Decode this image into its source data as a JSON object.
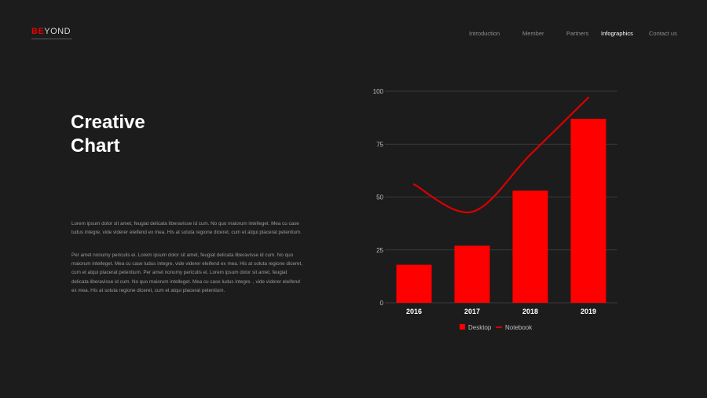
{
  "brand": {
    "logo_red": "BE",
    "logo_white": "YOND"
  },
  "nav": {
    "items": [
      "Introduction",
      "Member",
      "Partners",
      "Infographics",
      "Contact us"
    ],
    "active": "Infographics"
  },
  "title_line1": "Creative",
  "title_line2": "Chart",
  "body": {
    "paragraph1": "Lorem ipsum dolor sit amet, feugiat delicata liberavisse id cum. No quo maiorum intelleget. Mea cu case ludus integre, vide viderer eleifend ex mea. His at soluta regione diceret, cum et atqui placerat petentium.",
    "paragraph2": "Per amet nonumy periculis ei. Lorem ipsum dolor sit amet, feugiat delicata liberavisse id cum. No quo maiorum intelleget. Mea cu case ludus integre, vide viderer eleifend ex mea. His at soluta regione diceret, cum et atqui placerat petentium. Per amet nonumy periculis ei. Lorem ipsum dolor sit amet, feugiat delicata liberavisse id cum. No quo maiorum intelleget. Mea cu case ludus integre. , vide viderer eleifend ex mea. His at soluta regione diceret, cum et atqui placerat petentium."
  },
  "colors": {
    "background": "#1c1c1c",
    "accent": "#ff0000",
    "line": "#d90000",
    "grid": "#444444",
    "axis_text": "#bfbfbf"
  },
  "chart_data": {
    "type": "bar",
    "categories": [
      "2016",
      "2017",
      "2018",
      "2019"
    ],
    "series": [
      {
        "name": "Desktop",
        "type": "bar",
        "values": [
          18,
          27,
          53,
          87
        ]
      },
      {
        "name": "Notebook",
        "type": "line",
        "values": [
          56,
          43,
          70,
          97
        ]
      }
    ],
    "yticks": [
      0,
      25,
      50,
      75,
      100
    ],
    "ylim": [
      0,
      100
    ],
    "grid": true,
    "legend_position": "bottom"
  }
}
